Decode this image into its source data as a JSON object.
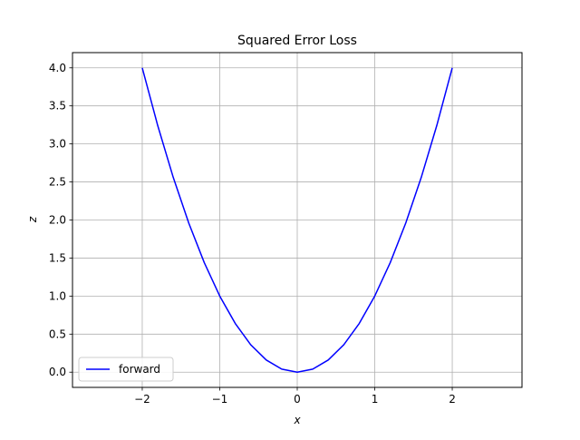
{
  "chart_data": {
    "type": "line",
    "title": "Squared Error Loss",
    "xlabel": "x",
    "ylabel": "z",
    "xlim": [
      -2.9,
      2.9
    ],
    "ylim": [
      -0.2,
      4.2
    ],
    "x_ticks": [
      -2,
      -1,
      0,
      1,
      2
    ],
    "x_tick_labels": [
      "−2",
      "−1",
      "0",
      "1",
      "2"
    ],
    "y_ticks": [
      0.0,
      0.5,
      1.0,
      1.5,
      2.0,
      2.5,
      3.0,
      3.5,
      4.0
    ],
    "y_tick_labels": [
      "0.0",
      "0.5",
      "1.0",
      "1.5",
      "2.0",
      "2.5",
      "3.0",
      "3.5",
      "4.0"
    ],
    "grid": true,
    "legend_position": "lower-left",
    "series": [
      {
        "name": "forward",
        "color": "#0000ff",
        "x": [
          -2.0,
          -1.8,
          -1.6,
          -1.4,
          -1.2,
          -1.0,
          -0.8,
          -0.6,
          -0.4,
          -0.2,
          0.0,
          0.2,
          0.4,
          0.6,
          0.8,
          1.0,
          1.2,
          1.4,
          1.6,
          1.8,
          2.0
        ],
        "y": [
          4.0,
          3.24,
          2.56,
          1.96,
          1.44,
          1.0,
          0.64,
          0.36,
          0.16,
          0.04,
          0.0,
          0.04,
          0.16,
          0.36,
          0.64,
          1.0,
          1.44,
          1.96,
          2.56,
          3.24,
          4.0
        ]
      }
    ]
  }
}
